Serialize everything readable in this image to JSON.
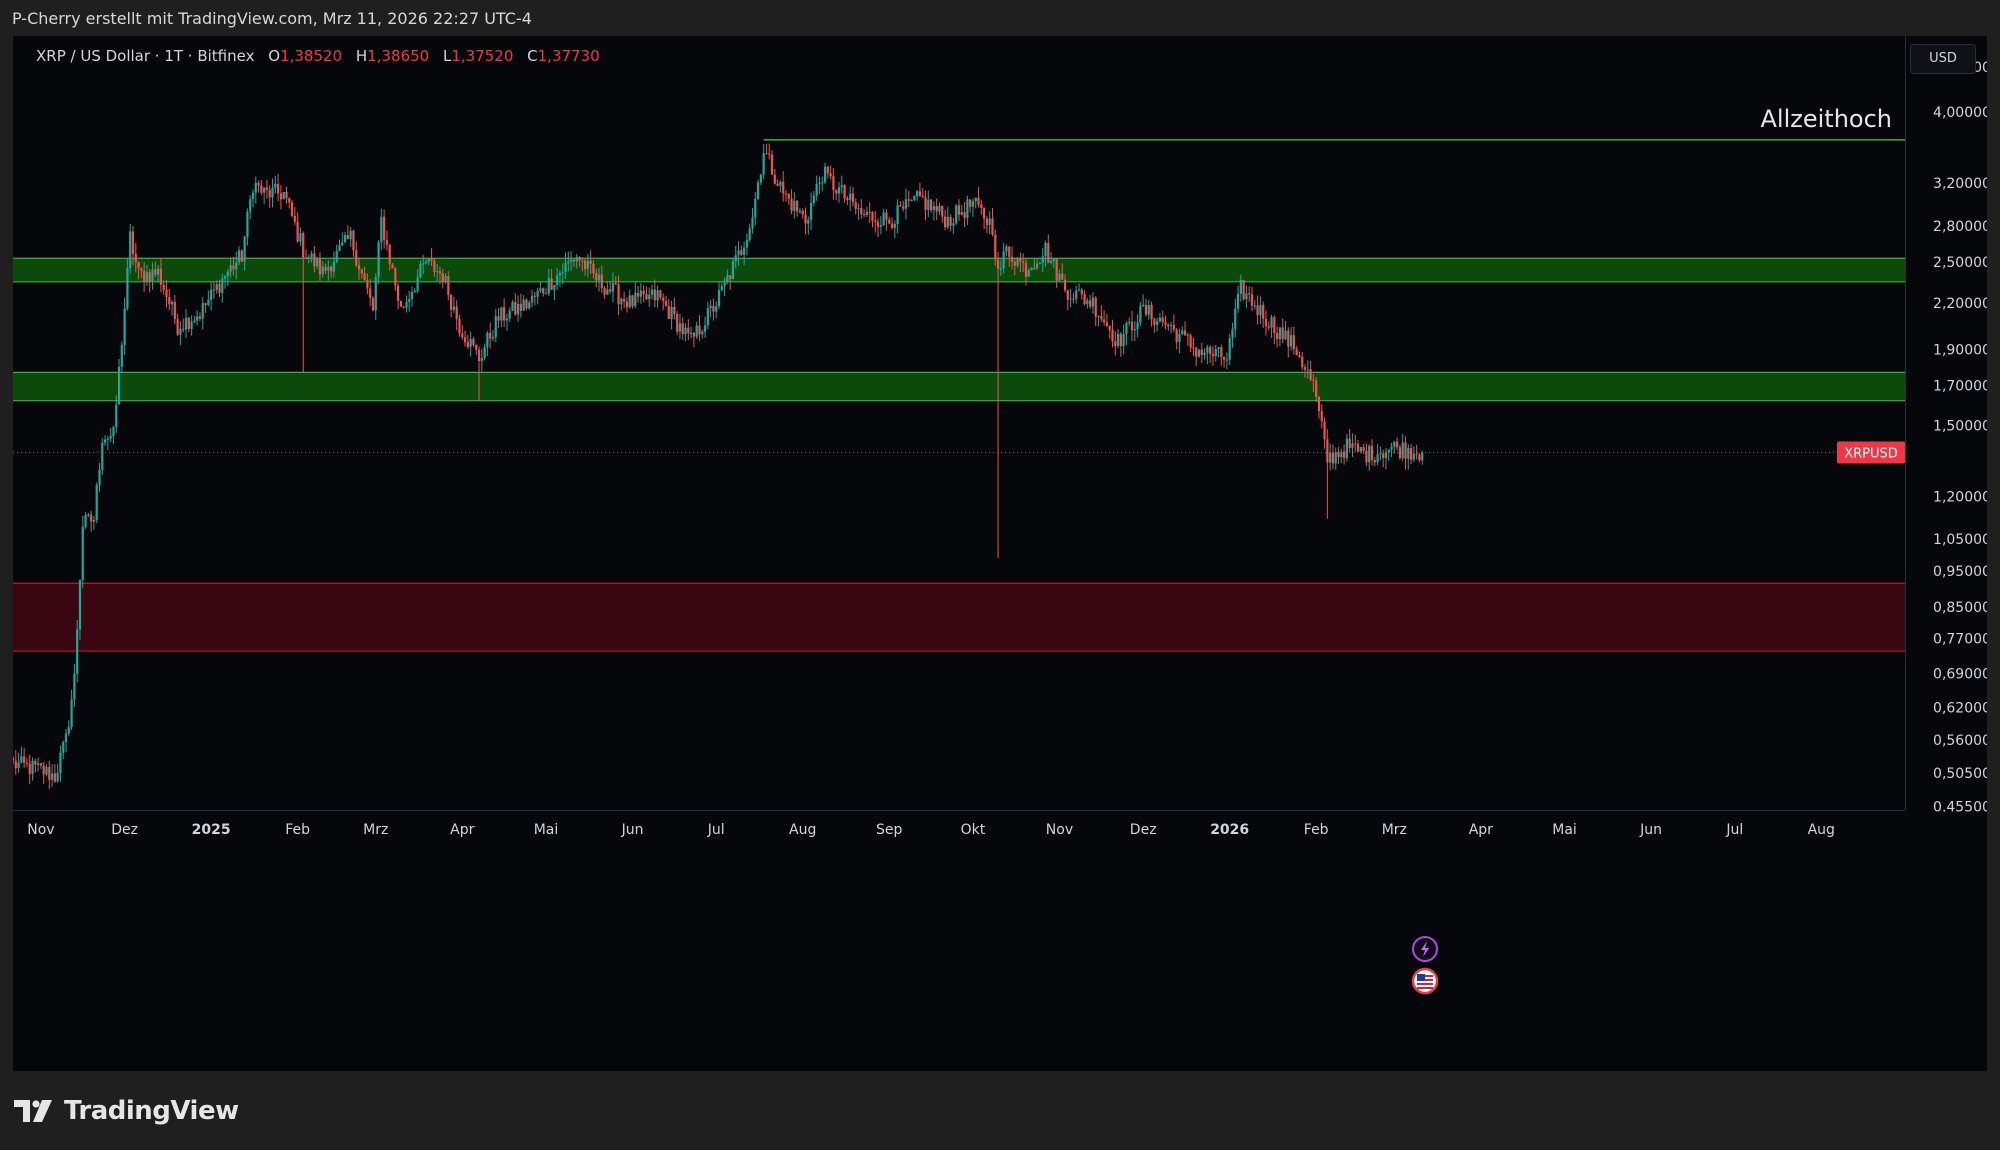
{
  "header": {
    "attribution": "P-Cherry erstellt mit TradingView.com, Mrz 11, 2026 22:27 UTC-4"
  },
  "legend": {
    "symbol": "XRP / US Dollar · 1T · Bitfinex",
    "open_label": "O",
    "open": "1,38520",
    "high_label": "H",
    "high": "1,38650",
    "low_label": "L",
    "low": "1,37520",
    "close_label": "C",
    "close": "1,37730"
  },
  "currency": "USD",
  "annotation": "Allzeithoch",
  "brand": {
    "name": "TradingView"
  },
  "colors": {
    "background": "#06070b",
    "up": "#26a69a",
    "down": "#ef5350",
    "green_zone": "#0c4a0c",
    "green_line": "#3fae3f",
    "red_zone": "#38070f",
    "red_line": "#b81c2c",
    "price_label": "#f23645",
    "ath_label": "#1fd21f"
  },
  "chart_data": {
    "type": "candlestick",
    "symbol": "XRPUSD",
    "y_scale": "log",
    "ylim": [
      0.45,
      4.9
    ],
    "y_ticks": [
      "0.45500",
      "0,50500",
      "0,56000",
      "0,62000",
      "0,69000",
      "0,77000",
      "0,85000",
      "0,95000",
      "1,05000",
      "1,20000",
      "1,50000",
      "1,70000",
      "1,90000",
      "2,20000",
      "2,50000",
      "2,80000",
      "3,20000",
      "4,00000",
      "4,60000"
    ],
    "x_ticks": [
      "Nov",
      "Dez",
      "2025",
      "Feb",
      "Mrz",
      "Apr",
      "Mai",
      "Jun",
      "Jul",
      "Aug",
      "Sep",
      "Okt",
      "Nov",
      "Dez",
      "2026",
      "Feb",
      "Mrz",
      "Apr",
      "Mai",
      "Jun",
      "Jul",
      "Aug"
    ],
    "x_range": [
      "2024-10-22",
      "2026-08-31"
    ],
    "zones": [
      {
        "color": "green",
        "low": 2.35,
        "high": 2.53
      },
      {
        "color": "green",
        "low": 1.62,
        "high": 1.77
      },
      {
        "color": "red",
        "low": 0.74,
        "high": 0.915
      }
    ],
    "levels": [
      {
        "name": "Allzeithoch",
        "value": 3.66368,
        "label": "3,66368",
        "from": "2025-07-18"
      }
    ],
    "last_price": {
      "name": "XRPUSD",
      "value": 1.3773,
      "label": "1,37730"
    },
    "wick_spikes": [
      {
        "date": "2025-10-10",
        "low": 0.99
      },
      {
        "date": "2025-02-03",
        "low": 1.77
      },
      {
        "date": "2025-04-07",
        "low": 1.62
      },
      {
        "date": "2026-02-05",
        "low": 1.12
      }
    ],
    "close_anchors": [
      [
        "2024-10-22",
        0.52
      ],
      [
        "2024-11-01",
        0.51
      ],
      [
        "2024-11-06",
        0.5
      ],
      [
        "2024-11-10",
        0.56
      ],
      [
        "2024-11-13",
        0.68
      ],
      [
        "2024-11-16",
        1.1
      ],
      [
        "2024-11-20",
        1.12
      ],
      [
        "2024-11-23",
        1.45
      ],
      [
        "2024-11-27",
        1.45
      ],
      [
        "2024-12-02",
        2.4
      ],
      [
        "2024-12-03",
        2.7
      ],
      [
        "2024-12-06",
        2.4
      ],
      [
        "2024-12-13",
        2.42
      ],
      [
        "2024-12-20",
        2.05
      ],
      [
        "2024-12-28",
        2.13
      ],
      [
        "2025-01-06",
        2.4
      ],
      [
        "2025-01-12",
        2.55
      ],
      [
        "2025-01-16",
        3.2
      ],
      [
        "2025-01-20",
        3.1
      ],
      [
        "2025-01-27",
        3.1
      ],
      [
        "2025-02-03",
        2.6
      ],
      [
        "2025-02-10",
        2.42
      ],
      [
        "2025-02-20",
        2.7
      ],
      [
        "2025-02-28",
        2.15
      ],
      [
        "2025-03-03",
        2.85
      ],
      [
        "2025-03-10",
        2.15
      ],
      [
        "2025-03-19",
        2.5
      ],
      [
        "2025-03-25",
        2.4
      ],
      [
        "2025-03-31",
        2.05
      ],
      [
        "2025-04-07",
        1.85
      ],
      [
        "2025-04-14",
        2.1
      ],
      [
        "2025-04-25",
        2.2
      ],
      [
        "2025-05-12",
        2.55
      ],
      [
        "2025-05-20",
        2.35
      ],
      [
        "2025-05-31",
        2.2
      ],
      [
        "2025-06-10",
        2.25
      ],
      [
        "2025-06-22",
        1.95
      ],
      [
        "2025-07-01",
        2.2
      ],
      [
        "2025-07-10",
        2.6
      ],
      [
        "2025-07-14",
        2.9
      ],
      [
        "2025-07-18",
        3.55
      ],
      [
        "2025-07-25",
        3.1
      ],
      [
        "2025-08-02",
        2.85
      ],
      [
        "2025-08-08",
        3.3
      ],
      [
        "2025-08-15",
        3.1
      ],
      [
        "2025-08-22",
        2.9
      ],
      [
        "2025-09-01",
        2.85
      ],
      [
        "2025-09-12",
        3.05
      ],
      [
        "2025-09-22",
        2.85
      ],
      [
        "2025-10-01",
        3.0
      ],
      [
        "2025-10-08",
        2.8
      ],
      [
        "2025-10-10",
        2.4
      ],
      [
        "2025-10-13",
        2.6
      ],
      [
        "2025-10-20",
        2.45
      ],
      [
        "2025-10-27",
        2.6
      ],
      [
        "2025-11-03",
        2.3
      ],
      [
        "2025-11-13",
        2.2
      ],
      [
        "2025-11-22",
        1.95
      ],
      [
        "2025-12-01",
        2.15
      ],
      [
        "2025-12-10",
        2.05
      ],
      [
        "2025-12-20",
        1.9
      ],
      [
        "2025-12-31",
        1.85
      ],
      [
        "2026-01-05",
        2.3
      ],
      [
        "2026-01-14",
        2.1
      ],
      [
        "2026-01-25",
        1.9
      ],
      [
        "2026-01-31",
        1.7
      ],
      [
        "2026-02-05",
        1.35
      ],
      [
        "2026-02-12",
        1.4
      ],
      [
        "2026-02-20",
        1.37
      ],
      [
        "2026-03-01",
        1.4
      ],
      [
        "2026-03-11",
        1.3773
      ]
    ]
  }
}
